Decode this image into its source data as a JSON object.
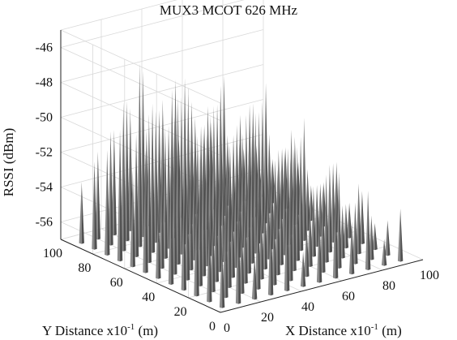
{
  "chart_data": {
    "type": "surface3d",
    "title": "MUX3 MCOT 626 MHz",
    "xlabel": "X Distance x10",
    "xlabel_sup": "-1",
    "xlabel_unit": " (m)",
    "ylabel": "Y Distance x10",
    "ylabel_sup": "-1",
    "ylabel_unit": " (m)",
    "zlabel": "RSSI (dBm)",
    "xlim": [
      0,
      100
    ],
    "ylim": [
      0,
      100
    ],
    "zlim": [
      -57,
      -45
    ],
    "xticks": [
      "0",
      "20",
      "40",
      "60",
      "80",
      "100"
    ],
    "yticks": [
      "0",
      "20",
      "40",
      "60",
      "80",
      "100"
    ],
    "zticks": [
      "-46",
      "-48",
      "-50",
      "-52",
      "-54",
      "-56"
    ],
    "grid": true,
    "peak_color": "#505050",
    "floor_value": -57,
    "spike_grid_step": 8,
    "spikes_description_values": {
      "x": [
        4,
        12,
        20,
        28,
        36,
        44,
        52,
        60,
        68,
        76,
        84,
        92
      ],
      "y": [
        4,
        12,
        20,
        28,
        36,
        44,
        52,
        60,
        68,
        76,
        84,
        92
      ],
      "rssi": [
        [
          -53.5,
          -51.0,
          -54.5,
          -52.0,
          -50.5,
          -55.0,
          -53.0,
          -51.5,
          -54.0,
          -52.5,
          -55.5,
          -54.0
        ],
        [
          -52.0,
          -50.5,
          -53.0,
          -51.0,
          -52.5,
          -50.0,
          -54.0,
          -52.0,
          -51.5,
          -53.5,
          -54.5,
          -55.0
        ],
        [
          -50.5,
          -52.5,
          -49.5,
          -51.5,
          -53.0,
          -51.0,
          -50.0,
          -53.5,
          -52.0,
          -54.0,
          -53.0,
          -55.5
        ],
        [
          -51.0,
          -49.5,
          -50.5,
          -52.0,
          -50.0,
          -52.5,
          -51.5,
          -50.5,
          -53.0,
          -52.0,
          -54.5,
          -54.0
        ],
        [
          -49.0,
          -51.5,
          -48.5,
          -50.5,
          -51.0,
          -49.5,
          -52.5,
          -51.0,
          -50.5,
          -53.5,
          -52.5,
          -55.0
        ],
        [
          -52.5,
          -48.0,
          -50.0,
          -49.5,
          -51.5,
          -50.5,
          -49.0,
          -52.0,
          -51.5,
          -50.0,
          -54.0,
          -53.0
        ],
        [
          -50.0,
          -50.5,
          -47.5,
          -51.0,
          -49.0,
          -52.0,
          -50.5,
          -49.5,
          -52.5,
          -51.0,
          -53.5,
          -54.5
        ],
        [
          -51.5,
          -48.5,
          -49.5,
          -48.0,
          -50.5,
          -49.0,
          -51.5,
          -50.0,
          -49.5,
          -52.5,
          -52.0,
          -55.0
        ],
        [
          -49.5,
          -50.0,
          -48.5,
          -50.0,
          -47.5,
          -50.5,
          -49.5,
          -51.5,
          -50.0,
          -49.0,
          -53.0,
          -54.0
        ],
        [
          -51.0,
          -48.5,
          -46.5,
          -49.5,
          -48.5,
          -49.0,
          -51.0,
          -49.0,
          -51.5,
          -50.5,
          -52.5,
          -53.5
        ],
        [
          -52.0,
          -50.5,
          -49.0,
          -47.5,
          -50.0,
          -48.5,
          -50.0,
          -50.5,
          -49.0,
          -51.5,
          -53.5,
          -54.5
        ],
        [
          -53.5,
          -52.0,
          -51.0,
          -50.0,
          -51.5,
          -50.0,
          -52.5,
          -51.5,
          -52.0,
          -53.0,
          -54.0,
          -55.5
        ]
      ]
    }
  }
}
